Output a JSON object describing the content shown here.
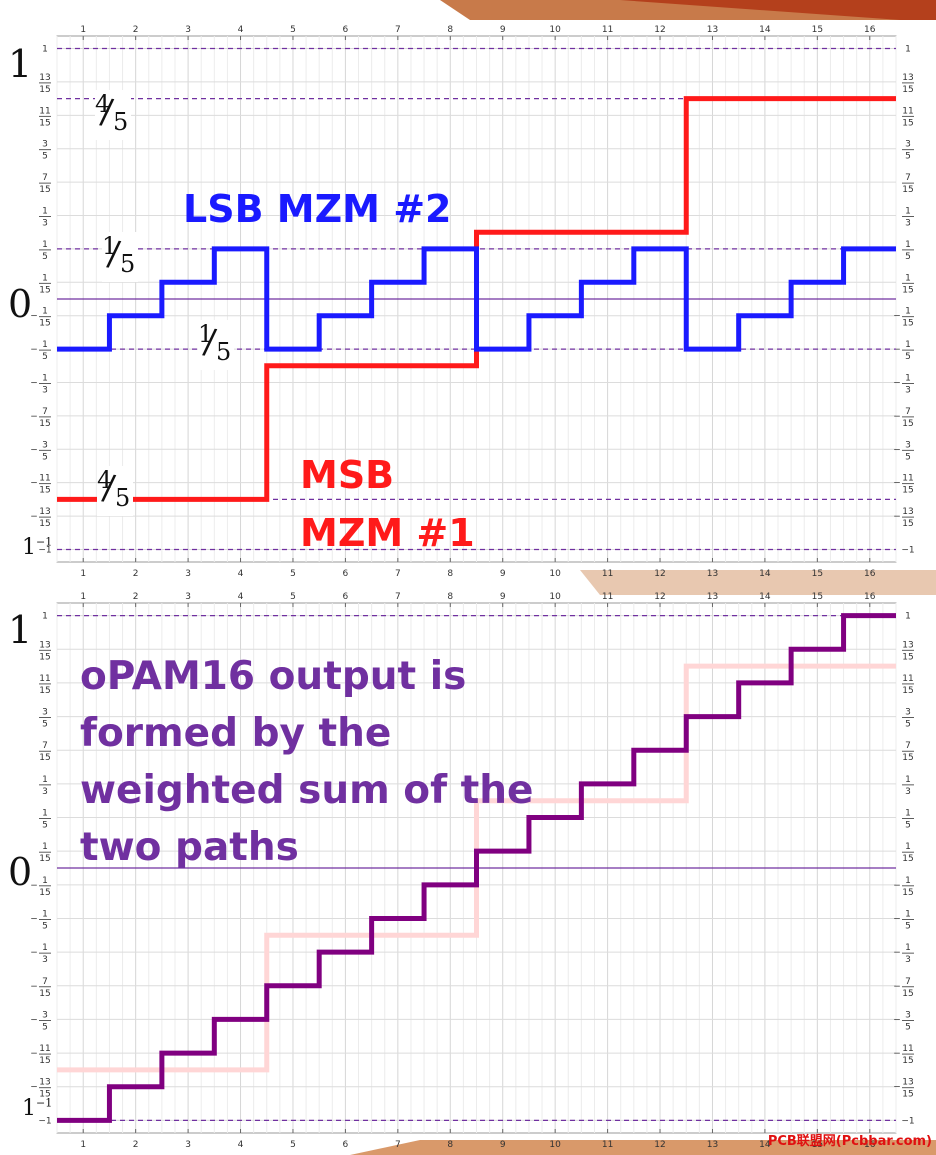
{
  "x_ticks": [
    "1",
    "2",
    "3",
    "4",
    "5",
    "6",
    "7",
    "8",
    "9",
    "10",
    "11",
    "12",
    "13",
    "14",
    "15",
    "16"
  ],
  "y_ticks": [
    {
      "v": 1,
      "num": "",
      "den": "",
      "text": "1"
    },
    {
      "v": 0.8667,
      "num": "13",
      "den": "15"
    },
    {
      "v": 0.7333,
      "num": "11",
      "den": "15"
    },
    {
      "v": 0.6,
      "num": "3",
      "den": "5"
    },
    {
      "v": 0.4667,
      "num": "7",
      "den": "15"
    },
    {
      "v": 0.3333,
      "num": "1",
      "den": "3"
    },
    {
      "v": 0.2,
      "num": "1",
      "den": "5"
    },
    {
      "v": 0.0667,
      "num": "1",
      "den": "15"
    },
    {
      "v": -0.0667,
      "num": "1",
      "den": "15",
      "neg": true
    },
    {
      "v": -0.2,
      "num": "1",
      "den": "5",
      "neg": true
    },
    {
      "v": -0.3333,
      "num": "1",
      "den": "3",
      "neg": true
    },
    {
      "v": -0.4667,
      "num": "7",
      "den": "15",
      "neg": true
    },
    {
      "v": -0.6,
      "num": "3",
      "den": "5",
      "neg": true
    },
    {
      "v": -0.7333,
      "num": "11",
      "den": "15",
      "neg": true
    },
    {
      "v": -0.8667,
      "num": "13",
      "den": "15",
      "neg": true
    },
    {
      "v": -1,
      "num": "",
      "den": "",
      "text": "−1"
    }
  ],
  "plot1": {
    "big_labels": {
      "top": "1",
      "zero": "0",
      "bottom": "1",
      "bottom_sup": "−1"
    },
    "frac_labels": [
      {
        "num": "4",
        "den": "5",
        "pos": "upper-left"
      },
      {
        "num": "1",
        "den": "5",
        "pos": "lsb-upper"
      },
      {
        "num": "1",
        "den": "5",
        "pos": "lsb-lower"
      },
      {
        "num": "4",
        "den": "5",
        "pos": "msb-lower"
      }
    ],
    "lsb_label": "LSB MZM #2",
    "msb_label": "MSB MZM #1",
    "colors": {
      "lsb": "#1a1aff",
      "msb": "#ff1a1a"
    }
  },
  "plot2": {
    "big_labels": {
      "top": "1",
      "zero": "0",
      "bottom": "1",
      "bottom_sup": "−1"
    },
    "text": "oPAM16 output is formed by the weighted sum of the two paths",
    "colors": {
      "output": "#800080",
      "ghost": "#ffd6d6",
      "text": "#7030a0"
    }
  },
  "chart_data": [
    {
      "type": "line",
      "title": "",
      "xlabel": "",
      "ylabel": "",
      "xlim": [
        0.5,
        16.5
      ],
      "ylim": [
        -1.05,
        1.05
      ],
      "grid": true,
      "step": true,
      "x": [
        1,
        2,
        3,
        4,
        5,
        6,
        7,
        8,
        9,
        10,
        11,
        12,
        13,
        14,
        15,
        16
      ],
      "series": [
        {
          "name": "LSB MZM #2",
          "color": "#1a1aff",
          "values": [
            -0.2,
            -0.0667,
            0.0667,
            0.2,
            -0.2,
            -0.0667,
            0.0667,
            0.2,
            -0.2,
            -0.0667,
            0.0667,
            0.2,
            -0.2,
            -0.0667,
            0.0667,
            0.2
          ]
        },
        {
          "name": "MSB MZM #1",
          "color": "#ff1a1a",
          "values": [
            -0.8,
            -0.8,
            -0.8,
            -0.8,
            -0.2667,
            -0.2667,
            -0.2667,
            -0.2667,
            0.2667,
            0.2667,
            0.2667,
            0.2667,
            0.8,
            0.8,
            0.8,
            0.8
          ]
        }
      ],
      "reference_lines": [
        1,
        0.8,
        0.2,
        0,
        -0.2,
        -0.8,
        -1
      ]
    },
    {
      "type": "line",
      "title": "",
      "xlabel": "",
      "ylabel": "",
      "xlim": [
        0.5,
        16.5
      ],
      "ylim": [
        -1.05,
        1.05
      ],
      "grid": true,
      "step": true,
      "x": [
        1,
        2,
        3,
        4,
        5,
        6,
        7,
        8,
        9,
        10,
        11,
        12,
        13,
        14,
        15,
        16
      ],
      "series": [
        {
          "color": "#800080",
          "values": [
            -1,
            -0.8667,
            -0.7333,
            -0.6,
            -0.4667,
            -0.3333,
            -0.2,
            -0.0667,
            0.0667,
            0.2,
            0.3333,
            0.4667,
            0.6,
            0.7333,
            0.8667,
            1
          ]
        },
        {
          "color": "#ffd6d6",
          "values": [
            -0.8,
            -0.8,
            -0.8,
            -0.8,
            -0.2667,
            -0.2667,
            -0.2667,
            -0.2667,
            0.2667,
            0.2667,
            0.2667,
            0.2667,
            0.8,
            0.8,
            0.8,
            0.8
          ]
        }
      ],
      "reference_lines": [
        1,
        0,
        -1
      ]
    }
  ],
  "watermark": "PCB联盟网(Pcbbar.com)"
}
